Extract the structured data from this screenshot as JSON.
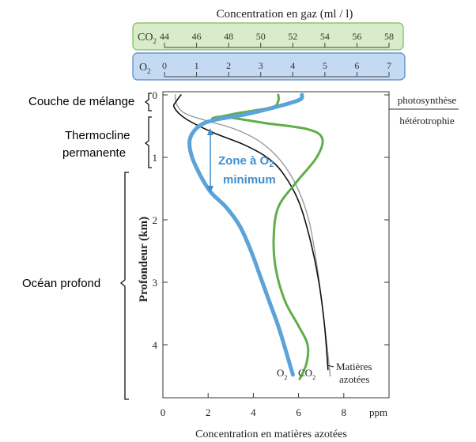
{
  "chart_data": {
    "type": "line",
    "title": "",
    "gas_axis": {
      "label": "Concentration en gaz (ml / l)",
      "co2": {
        "name": "CO",
        "sub": "2",
        "ticks": [
          44,
          46,
          48,
          50,
          52,
          54,
          56,
          58
        ],
        "range": [
          44,
          58
        ]
      },
      "o2": {
        "name": "O",
        "sub": "2",
        "ticks": [
          0,
          1,
          2,
          3,
          4,
          5,
          6,
          7
        ],
        "range": [
          0,
          7
        ]
      }
    },
    "xlabel": "Concentration en matières azotées",
    "x_unit": "ppm",
    "x_ticks": [
      0,
      2,
      4,
      6,
      8
    ],
    "xlim": [
      0,
      10
    ],
    "ylabel": "Profondeur (km)",
    "y_ticks": [
      0,
      1,
      2,
      3,
      4
    ],
    "ylim": [
      0,
      4.75
    ],
    "y_inverted": true,
    "series": [
      {
        "name": "O2",
        "label_main": "O",
        "label_sub": "2",
        "color": "#5ba3d9",
        "points": [
          [
            6.15,
            0
          ],
          [
            5.9,
            0.1
          ],
          [
            3.8,
            0.3
          ],
          [
            2.3,
            0.4
          ],
          [
            1.6,
            0.5
          ],
          [
            1.2,
            0.7
          ],
          [
            1.25,
            0.95
          ],
          [
            1.6,
            1.25
          ],
          [
            2.1,
            1.55
          ],
          [
            2.8,
            1.8
          ],
          [
            3.4,
            2.1
          ],
          [
            3.9,
            2.5
          ],
          [
            4.3,
            2.9
          ],
          [
            4.7,
            3.3
          ],
          [
            5.1,
            3.7
          ],
          [
            5.4,
            4.05
          ],
          [
            5.6,
            4.3
          ],
          [
            5.75,
            4.48
          ]
        ]
      },
      {
        "name": "CO2",
        "label_main": "CO",
        "label_sub": "2",
        "color": "#5fae4a",
        "points": [
          [
            5.1,
            0
          ],
          [
            5.1,
            0.1
          ],
          [
            4.8,
            0.2
          ],
          [
            3.2,
            0.3
          ],
          [
            2.2,
            0.38
          ],
          [
            2.7,
            0.35
          ],
          [
            4.5,
            0.45
          ],
          [
            6.4,
            0.55
          ],
          [
            7.05,
            0.7
          ],
          [
            6.8,
            1.0
          ],
          [
            5.9,
            1.4
          ],
          [
            5.1,
            1.8
          ],
          [
            4.9,
            2.3
          ],
          [
            5.0,
            2.8
          ],
          [
            5.4,
            3.3
          ],
          [
            6.0,
            3.7
          ],
          [
            6.4,
            4.0
          ],
          [
            6.35,
            4.3
          ],
          [
            6.05,
            4.55
          ]
        ]
      },
      {
        "name": "Matières azotées",
        "color": "#111111",
        "points": [
          [
            0.8,
            0
          ],
          [
            0.6,
            0.1
          ],
          [
            0.5,
            0.2
          ],
          [
            1.0,
            0.38
          ],
          [
            2.2,
            0.6
          ],
          [
            3.6,
            0.8
          ],
          [
            4.6,
            1.0
          ],
          [
            5.3,
            1.25
          ],
          [
            6.0,
            1.7
          ],
          [
            6.5,
            2.3
          ],
          [
            6.9,
            3.0
          ],
          [
            7.15,
            3.7
          ],
          [
            7.3,
            4.4
          ]
        ]
      },
      {
        "name": "Matières azotées (courbe grise)",
        "color": "#9a9a9a",
        "points": [
          [
            0.55,
            0
          ],
          [
            0.6,
            0.15
          ],
          [
            1.0,
            0.3
          ],
          [
            2.0,
            0.42
          ],
          [
            3.2,
            0.55
          ],
          [
            4.3,
            0.75
          ],
          [
            5.2,
            1.05
          ],
          [
            5.9,
            1.45
          ],
          [
            6.45,
            2.0
          ],
          [
            6.8,
            2.7
          ],
          [
            7.05,
            3.4
          ],
          [
            7.25,
            4.0
          ],
          [
            7.4,
            4.5
          ]
        ]
      }
    ],
    "series_text_label": {
      "line1": "Matières",
      "line2": "azotées"
    },
    "zones": [
      {
        "label": "Couche de mélange",
        "from": 0,
        "to": 0.15
      },
      {
        "label": [
          "Thermocline",
          "permanente"
        ],
        "from": 0.2,
        "to": 1.0
      },
      {
        "label": "Océan profond",
        "from": 1.1,
        "to": 4.7
      }
    ],
    "annotation": {
      "line1": "Zone à O",
      "line1_sub": "2",
      "line2": "minimum",
      "from": 0.5,
      "to": 1.2
    },
    "right_labels": {
      "upper": "photosynthèse",
      "lower": "hétérotrophie"
    }
  },
  "colors": {
    "co2_box_fill": "#d9ecc9",
    "co2_box_border": "#7aba5b",
    "o2_box_fill": "#c4daf2",
    "o2_box_border": "#4f86c6",
    "annotation": "#3f8fd0"
  }
}
